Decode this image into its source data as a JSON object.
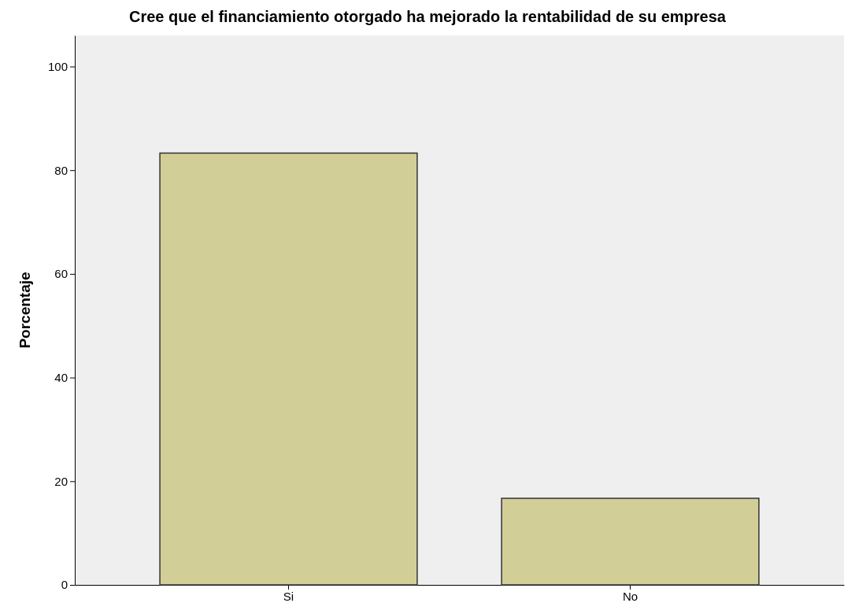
{
  "chart_data": {
    "type": "bar",
    "title": "Cree que el financiamiento otorgado ha mejorado la rentabilidad de su empresa",
    "ylabel": "Porcentaje",
    "categories": [
      "Si",
      "No"
    ],
    "values": [
      83.3,
      16.7
    ],
    "color": "#d2ce98",
    "ylim": [
      0,
      106
    ],
    "yticks": [
      0,
      20,
      40,
      60,
      80,
      100
    ]
  }
}
